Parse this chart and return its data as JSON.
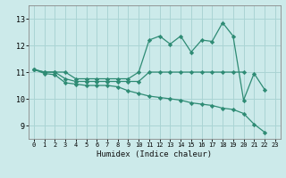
{
  "x": [
    0,
    1,
    2,
    3,
    4,
    5,
    6,
    7,
    8,
    9,
    10,
    11,
    12,
    13,
    14,
    15,
    16,
    17,
    18,
    19,
    20,
    21,
    22,
    23
  ],
  "line_max": [
    11.1,
    11.0,
    11.0,
    11.0,
    10.75,
    10.75,
    10.75,
    10.75,
    10.75,
    10.75,
    11.0,
    12.2,
    12.35,
    12.05,
    12.35,
    11.75,
    12.2,
    12.15,
    12.85,
    12.35,
    9.95,
    10.95,
    10.35,
    null
  ],
  "line_avg": [
    11.1,
    11.0,
    11.0,
    10.75,
    10.65,
    10.65,
    10.65,
    10.65,
    10.65,
    10.65,
    10.65,
    11.0,
    11.0,
    11.0,
    11.0,
    11.0,
    11.0,
    11.0,
    11.0,
    11.0,
    11.0,
    null,
    null,
    null
  ],
  "line_min": [
    11.1,
    10.95,
    10.9,
    10.6,
    10.55,
    10.5,
    10.5,
    10.5,
    10.45,
    10.3,
    10.2,
    10.1,
    10.05,
    10.0,
    9.95,
    9.85,
    9.8,
    9.75,
    9.65,
    9.6,
    9.45,
    9.05,
    8.75,
    null
  ],
  "color": "#2e8b74",
  "bg_color": "#cceaea",
  "grid_color": "#aad4d4",
  "xlabel": "Humidex (Indice chaleur)",
  "ylim": [
    8.5,
    13.5
  ],
  "xlim": [
    -0.5,
    23.5
  ],
  "yticks": [
    9,
    10,
    11,
    12,
    13
  ],
  "xticks": [
    0,
    1,
    2,
    3,
    4,
    5,
    6,
    7,
    8,
    9,
    10,
    11,
    12,
    13,
    14,
    15,
    16,
    17,
    18,
    19,
    20,
    21,
    22,
    23
  ],
  "marker": "D",
  "markersize": 2.2,
  "linewidth": 0.9
}
